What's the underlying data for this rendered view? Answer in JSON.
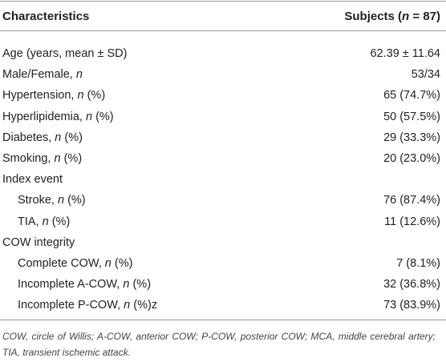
{
  "table": {
    "header": [
      [
        "Characteristics"
      ],
      [
        "Subjects (",
        "n",
        " = 87)"
      ]
    ],
    "rows": [
      {
        "label": [
          "Age (years, mean ± SD)"
        ],
        "value": "62.39 ± 11.64"
      },
      {
        "label": [
          "Male/Female, ",
          "n"
        ],
        "value": "53/34"
      },
      {
        "label": [
          "Hypertension, ",
          "n",
          " (%)"
        ],
        "value": "65 (74.7%)"
      },
      {
        "label": [
          "Hyperlipidemia, ",
          "n",
          " (%)"
        ],
        "value": "50 (57.5%)"
      },
      {
        "label": [
          "Diabetes, ",
          "n",
          " (%)"
        ],
        "value": "29 (33.3%)"
      },
      {
        "label": [
          "Smoking, ",
          "n",
          " (%)"
        ],
        "value": "20 (23.0%)"
      },
      {
        "label": [
          "Index event"
        ],
        "rows": [
          {
            "label": [
              "Stroke, ",
              "n",
              " (%)"
            ],
            "value": "76 (87.4%)"
          },
          {
            "label": [
              "TIA, ",
              "n",
              " (%)"
            ],
            "value": "11 (12.6%)"
          }
        ]
      },
      {
        "label": [
          "COW integrity"
        ],
        "rows": [
          {
            "label": [
              "Complete COW, ",
              "n",
              " (%)"
            ],
            "value": "7 (8.1%)"
          },
          {
            "label": [
              "Incomplete A-COW, ",
              "n",
              " (%)"
            ],
            "value": "32 (36.8%)"
          },
          {
            "label": [
              "Incomplete P-COW, ",
              "n",
              " (%)z"
            ],
            "value": "73 (83.9%)"
          }
        ]
      }
    ],
    "footnote": "COW, circle of Willis; A-COW, anterior COW; P-COW, posterior COW; MCA, middle cerebral artery; TIA, transient ischemic attack."
  }
}
